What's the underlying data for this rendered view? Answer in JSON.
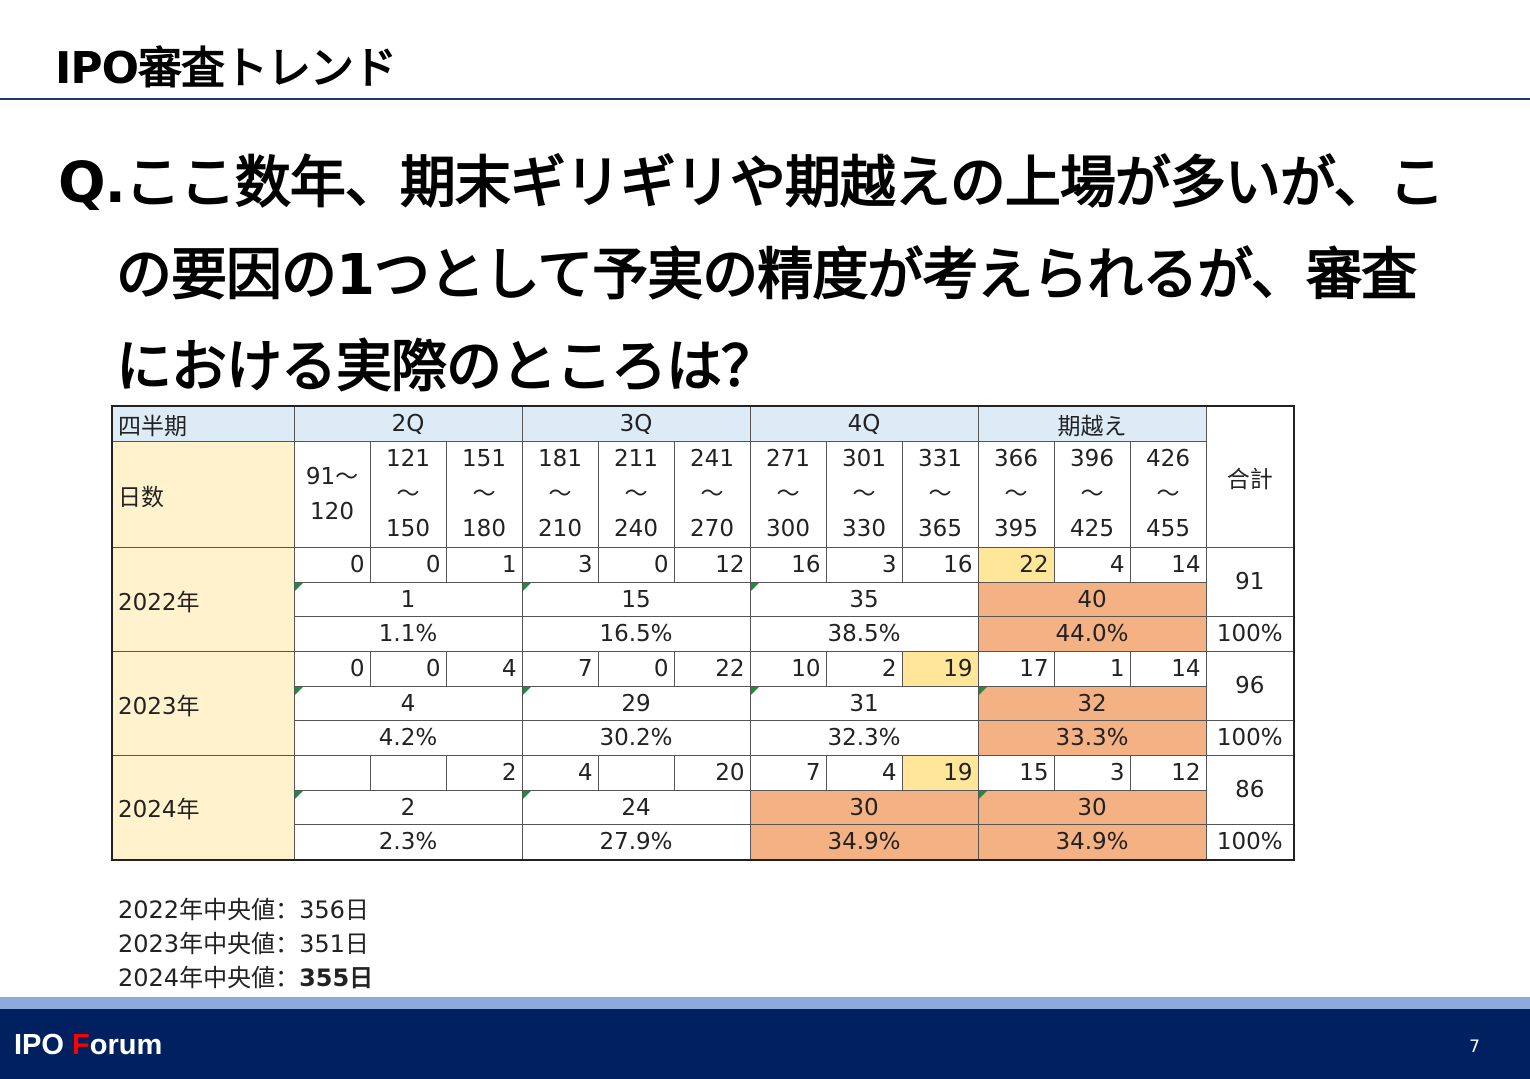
{
  "header": {
    "title": "IPO審査トレンド"
  },
  "question": {
    "lines": [
      "Q.ここ数年、期末ギリギリや期越えの上場が多いが、こ",
      "の要因の1つとして予実の精度が考えられるが、審査",
      "における実際のところは？"
    ]
  },
  "table": {
    "quarter_label": "四半期",
    "quarters": [
      "2Q",
      "3Q",
      "4Q",
      "期越え"
    ],
    "days_label": "日数",
    "total_label": "合計",
    "days": [
      {
        "from": "91～",
        "to": "120"
      },
      {
        "from": "121",
        "sep": "～",
        "to": "150"
      },
      {
        "from": "151",
        "sep": "～",
        "to": "180"
      },
      {
        "from": "181",
        "sep": "～",
        "to": "210"
      },
      {
        "from": "211",
        "sep": "～",
        "to": "240"
      },
      {
        "from": "241",
        "sep": "～",
        "to": "270"
      },
      {
        "from": "271",
        "sep": "～",
        "to": "300"
      },
      {
        "from": "301",
        "sep": "～",
        "to": "330"
      },
      {
        "from": "331",
        "sep": "～",
        "to": "365"
      },
      {
        "from": "366",
        "sep": "～",
        "to": "395"
      },
      {
        "from": "396",
        "sep": "～",
        "to": "425"
      },
      {
        "from": "426",
        "sep": "～",
        "to": "455"
      }
    ],
    "years": [
      {
        "label": "2022年",
        "counts": [
          "0",
          "0",
          "1",
          "3",
          "0",
          "12",
          "16",
          "3",
          "16",
          "22",
          "4",
          "14"
        ],
        "quarter_totals": [
          "1",
          "15",
          "35",
          "40"
        ],
        "quarter_pcts": [
          "1.1%",
          "16.5%",
          "38.5%",
          "44.0%"
        ],
        "total": "91",
        "total_pct": "100%"
      },
      {
        "label": "2023年",
        "counts": [
          "0",
          "0",
          "4",
          "7",
          "0",
          "22",
          "10",
          "2",
          "19",
          "17",
          "1",
          "14"
        ],
        "quarter_totals": [
          "4",
          "29",
          "31",
          "32"
        ],
        "quarter_pcts": [
          "4.2%",
          "30.2%",
          "32.3%",
          "33.3%"
        ],
        "total": "96",
        "total_pct": "100%"
      },
      {
        "label": "2024年",
        "counts": [
          "",
          "",
          "2",
          "4",
          "",
          "20",
          "7",
          "4",
          "19",
          "15",
          "3",
          "12"
        ],
        "quarter_totals": [
          "2",
          "24",
          "30",
          "30"
        ],
        "quarter_pcts": [
          "2.3%",
          "27.9%",
          "34.9%",
          "34.9%"
        ],
        "total": "86",
        "total_pct": "100%"
      }
    ]
  },
  "medians": {
    "line1": "2022年中央値：356日",
    "line2": "2023年中央値：351日",
    "line3_label": "2024年中央値：",
    "line3_value": "355日"
  },
  "footer": {
    "brand_a": "IPO ",
    "brand_accent": "F",
    "brand_b": "orum",
    "page_number": "7"
  },
  "colors": {
    "header_blue": "#ddebf7",
    "label_yellow": "#fff2cc",
    "highlight_yellow": "#ffe699",
    "highlight_orange": "#f4b183",
    "footer_navy": "#002060",
    "footer_band": "#8ea9db",
    "brand_accent_red": "#ff0000"
  }
}
